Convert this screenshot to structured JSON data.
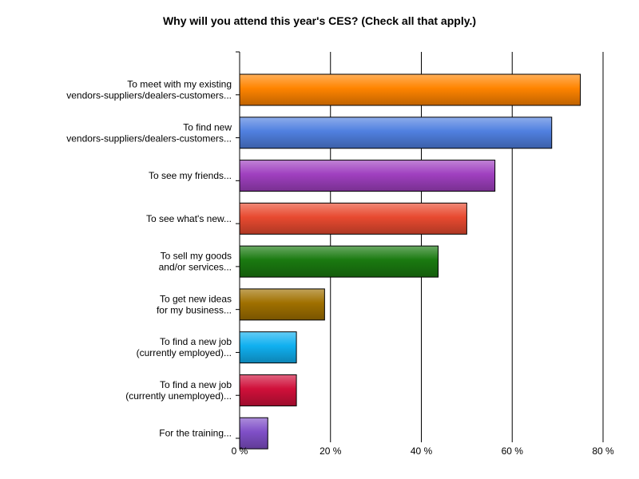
{
  "chart_data": {
    "type": "bar",
    "orientation": "horizontal",
    "title": "Why will you attend this year's CES? (Check all that apply.)",
    "xlabel": "",
    "ylabel": "",
    "xlim": [
      0,
      80
    ],
    "grid": true,
    "legend": "none",
    "x_ticks": [
      {
        "value": 0,
        "label": "0 %"
      },
      {
        "value": 20,
        "label": "20 %"
      },
      {
        "value": 40,
        "label": "40 %"
      },
      {
        "value": 60,
        "label": "60 %"
      },
      {
        "value": 80,
        "label": "80 %"
      }
    ],
    "categories": [
      [
        "To meet with my existing",
        "vendors-suppliers/dealers-customers..."
      ],
      [
        "To find new",
        "vendors-suppliers/dealers-customers..."
      ],
      [
        "To see my friends..."
      ],
      [
        "To see what's new..."
      ],
      [
        "To sell my goods",
        "and/or services..."
      ],
      [
        "To get new ideas",
        "for my business..."
      ],
      [
        "To find a new job",
        "(currently employed)..."
      ],
      [
        "To find a new job",
        "(currently unemployed)..."
      ],
      [
        "For the training..."
      ]
    ],
    "values": [
      75,
      68.7,
      56.2,
      50,
      43.7,
      18.7,
      12.5,
      12.5,
      6.2
    ],
    "colors": [
      "#ff8400",
      "#5080e0",
      "#a040c0",
      "#e84a30",
      "#1a7a10",
      "#a07000",
      "#10b0f0",
      "#d0103a",
      "#8050c8"
    ]
  }
}
